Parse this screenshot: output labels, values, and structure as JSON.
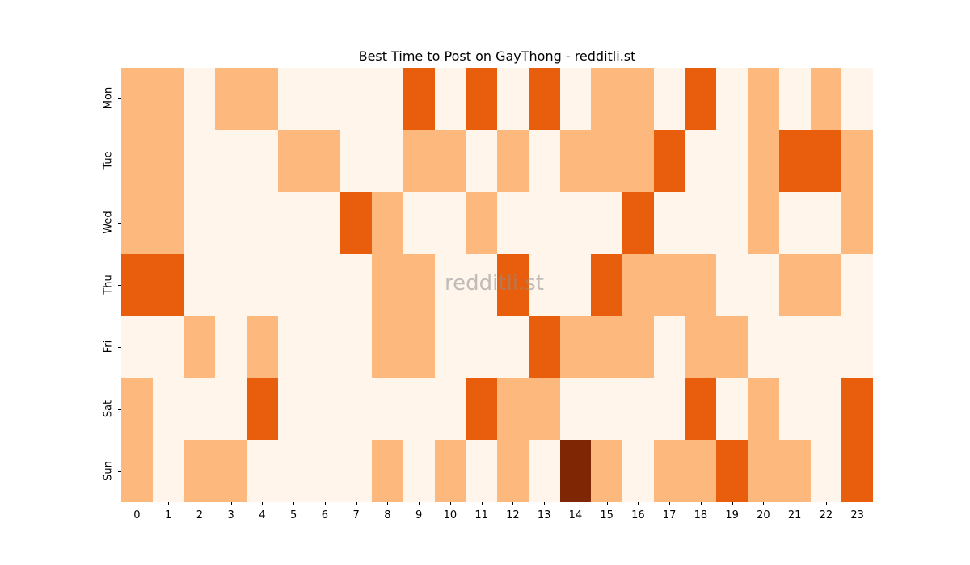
{
  "chart_data": {
    "type": "heatmap",
    "title": "Best Time to Post on GayThong - redditli.st",
    "xlabel": "",
    "ylabel": "",
    "x": [
      "0",
      "1",
      "2",
      "3",
      "4",
      "5",
      "6",
      "7",
      "8",
      "9",
      "10",
      "11",
      "12",
      "13",
      "14",
      "15",
      "16",
      "17",
      "18",
      "19",
      "20",
      "21",
      "22",
      "23"
    ],
    "y": [
      "Mon",
      "Tue",
      "Wed",
      "Thu",
      "Fri",
      "Sat",
      "Sun"
    ],
    "colormap": "Oranges",
    "levels": {
      "0": "#fff5eb",
      "1": "#fdb97d",
      "2": "#e95e0d",
      "3": "#7f2704"
    },
    "values": [
      [
        1,
        1,
        0,
        1,
        1,
        0,
        0,
        0,
        0,
        2,
        0,
        2,
        0,
        2,
        0,
        1,
        1,
        0,
        2,
        0,
        1,
        0,
        1,
        0
      ],
      [
        1,
        1,
        0,
        0,
        0,
        1,
        1,
        0,
        0,
        1,
        1,
        0,
        1,
        0,
        1,
        1,
        1,
        2,
        0,
        0,
        1,
        2,
        2,
        1
      ],
      [
        1,
        1,
        0,
        0,
        0,
        0,
        0,
        2,
        1,
        0,
        0,
        1,
        0,
        0,
        0,
        0,
        2,
        0,
        0,
        0,
        1,
        0,
        0,
        1
      ],
      [
        2,
        2,
        0,
        0,
        0,
        0,
        0,
        0,
        1,
        1,
        0,
        0,
        2,
        0,
        0,
        2,
        1,
        1,
        1,
        0,
        0,
        1,
        1,
        0
      ],
      [
        0,
        0,
        1,
        0,
        1,
        0,
        0,
        0,
        1,
        1,
        0,
        0,
        0,
        2,
        1,
        1,
        1,
        0,
        1,
        1,
        0,
        0,
        0,
        0
      ],
      [
        1,
        0,
        0,
        0,
        2,
        0,
        0,
        0,
        0,
        0,
        0,
        2,
        1,
        1,
        0,
        0,
        0,
        0,
        2,
        0,
        1,
        0,
        0,
        2
      ],
      [
        1,
        0,
        1,
        1,
        0,
        0,
        0,
        0,
        1,
        0,
        1,
        0,
        1,
        0,
        3,
        1,
        0,
        1,
        1,
        2,
        1,
        1,
        0,
        2
      ]
    ],
    "colorbar": false,
    "grid": false
  },
  "watermark": "redditli.st"
}
